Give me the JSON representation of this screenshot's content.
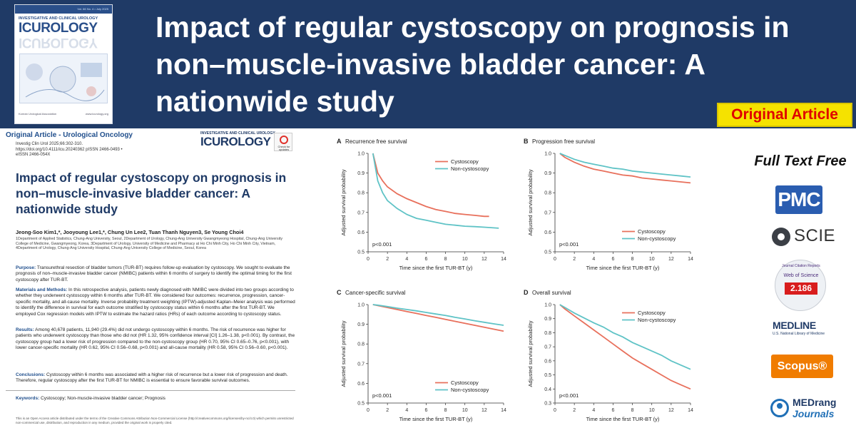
{
  "header": {
    "title": "Impact of regular cystoscopy on prognosis in non–muscle-invasive bladder cancer: A nationwide study",
    "badge": "Original Article"
  },
  "cover": {
    "volume": "Vol. 66 No. 4 • July 2025",
    "journal": "INVESTIGATIVE AND CLINICAL UROLOGY",
    "logo": "ICUROLOGY",
    "publisher": "Korean Urological Association",
    "url": "www.icurology.org"
  },
  "article": {
    "section": "Original Article - Urological Oncology",
    "citation": "Investig Clin Urol 2025;66:302-310. https://doi.org/10.4111/icu.20240362 pISSN 2466-0493 • eISSN 2466-054X",
    "journal_small": "INVESTIGATIVE AND CLINICAL UROLOGY",
    "journal_logo": "ICUROLOGY",
    "check_updates": "Check for updates",
    "title": "Impact of regular cystoscopy on prognosis in non–muscle-invasive bladder cancer: A nationwide study",
    "authors": "Jeong-Soo Kim1,*, Jooyoung Lee1,*, Chung Un Lee2, Tuan Thanh Nguyen3, Se Young Choi4",
    "affiliations": "1Department of Applied Statistics, Chung-Ang University, Seoul, 2Department of Urology, Chung-Ang University Gwangmyeong Hospital, Chung-Ang University College of Medicine, Gwangmyeong, Korea, 3Department of Urology, University of Medicine and Pharmacy at Ho Chi Minh City, Ho Chi Minh City, Vietnam, 4Department of Urology, Chung-Ang University Hospital, Chung-Ang University College of Medicine, Seoul, Korea",
    "purpose_label": "Purpose:",
    "purpose": "Transurethral resection of bladder tumors (TUR-BT) requires follow-up evaluation by cystoscopy. We sought to evaluate the prognosis of non–muscle-invasive bladder cancer (NMIBC) patients within 6 months of surgery to identify the optimal timing for the first cystoscopy after TUR-BT.",
    "methods_label": "Materials and Methods:",
    "methods": "In this retrospective analysis, patients newly diagnosed with NMIBC were divided into two groups according to whether they underwent cystoscopy within 6 months after TUR-BT. We considered four outcomes: recurrence, progression, cancer-specific mortality, and all-cause mortality. Inverse probability treatment weighting (IPTW)-adjusted Kaplan–Meier analysis was performed to identify the difference in survival for each outcome stratified by cystoscopy status within 6 months after the first TUR-BT. We employed Cox regression models with IPTW to estimate the hazard ratios (HRs) of each outcome according to cystoscopy status.",
    "results_label": "Results:",
    "results": "Among 40,678 patients, 11,940 (29.4%) did not undergo cystoscopy within 6 months. The risk of recurrence was higher for patients who underwent cystoscopy than those who did not (HR 1.32, 95% confidence interval [CI] 1.26–1.38, p<0.001). By contrast, the cystoscopy group had a lower risk of progression compared to the non-cystoscopy group (HR 0.70, 95% CI 0.65–0.76, p<0.001), with lower cancer-specific mortality (HR 0.62, 95% CI 0.56–0.68, p<0.001) and all-cause mortality (HR 0.58, 95% CI 0.56–0.60, p<0.001).",
    "conclusions_label": "Conclusions:",
    "conclusions": "Cystoscopy within 6 months was associated with a higher risk of recurrence but a lower risk of progression and death. Therefore, regular cystoscopy after the first TUR-BT for NMIBC is essential to ensure favorable survival outcomes.",
    "keywords_label": "Keywords:",
    "keywords": "Cystoscopy; Non-muscle-invasive bladder cancer; Prognosis",
    "open_access": "This is an Open Access article distributed under the terms of the Creative Commons Attribution Non-Commercial License (http://creativecommons.org/licenses/by-nc/4.0) which permits unrestricted non-commercial use, distribution, and reproduction in any medium, provided the original work is properly cited."
  },
  "colors": {
    "header_bg": "#1f3a66",
    "badge_bg": "#f5e200",
    "badge_text": "#e00000",
    "cystoscopy": "#e8705c",
    "non_cystoscopy": "#5fc3c6"
  },
  "chart_data": [
    {
      "type": "line",
      "panel": "A",
      "title": "Recurrence free survival",
      "xlabel": "Time since the first TUR-BT (y)",
      "ylabel": "Adjusted survival probability",
      "xlim": [
        0,
        14
      ],
      "ylim": [
        0.5,
        1.0
      ],
      "xticks": [
        0,
        2,
        4,
        6,
        8,
        10,
        12,
        14
      ],
      "yticks": [
        0.5,
        0.6,
        0.7,
        0.8,
        0.9,
        1.0
      ],
      "pvalue": "p<0.001",
      "legend": "top-right",
      "series": [
        {
          "name": "Cystoscopy",
          "color": "#e8705c",
          "x": [
            0.5,
            1,
            1.5,
            2,
            3,
            4,
            5,
            6,
            7,
            8,
            9,
            10,
            11,
            12,
            12.5
          ],
          "values": [
            1.0,
            0.9,
            0.86,
            0.83,
            0.795,
            0.77,
            0.75,
            0.73,
            0.715,
            0.705,
            0.695,
            0.69,
            0.685,
            0.68,
            0.68
          ]
        },
        {
          "name": "Non-cystoscopy",
          "color": "#5fc3c6",
          "x": [
            0.5,
            1,
            1.5,
            2,
            3,
            4,
            5,
            6,
            7,
            8,
            9,
            10,
            11,
            12,
            13.5
          ],
          "values": [
            1.0,
            0.86,
            0.8,
            0.76,
            0.72,
            0.69,
            0.67,
            0.66,
            0.65,
            0.64,
            0.635,
            0.63,
            0.628,
            0.625,
            0.62
          ]
        }
      ]
    },
    {
      "type": "line",
      "panel": "B",
      "title": "Progression free survival",
      "xlabel": "Time since the first TUR-BT (y)",
      "ylabel": "Adjusted survival probability",
      "xlim": [
        0,
        14
      ],
      "ylim": [
        0.5,
        1.0
      ],
      "xticks": [
        0,
        2,
        4,
        6,
        8,
        10,
        12,
        14
      ],
      "yticks": [
        0.5,
        0.6,
        0.7,
        0.8,
        0.9,
        1.0
      ],
      "pvalue": "p<0.001",
      "legend": "bottom-right",
      "series": [
        {
          "name": "Cystoscopy",
          "color": "#e8705c",
          "x": [
            0.5,
            1,
            2,
            3,
            4,
            5,
            6,
            7,
            8,
            9,
            10,
            11,
            12,
            13,
            14
          ],
          "values": [
            1.0,
            0.98,
            0.955,
            0.935,
            0.92,
            0.91,
            0.9,
            0.89,
            0.885,
            0.875,
            0.87,
            0.865,
            0.86,
            0.855,
            0.85
          ]
        },
        {
          "name": "Non-cystoscopy",
          "color": "#5fc3c6",
          "x": [
            0.5,
            1,
            2,
            3,
            4,
            5,
            6,
            7,
            8,
            9,
            10,
            11,
            12,
            13,
            14
          ],
          "values": [
            1.0,
            0.99,
            0.97,
            0.955,
            0.945,
            0.935,
            0.925,
            0.92,
            0.91,
            0.905,
            0.9,
            0.895,
            0.89,
            0.885,
            0.88
          ]
        }
      ]
    },
    {
      "type": "line",
      "panel": "C",
      "title": "Cancer-specific survival",
      "xlabel": "Time since the first TUR-BT (y)",
      "ylabel": "Adjusted survival probability",
      "xlim": [
        0,
        14
      ],
      "ylim": [
        0.5,
        1.0
      ],
      "xticks": [
        0,
        2,
        4,
        6,
        8,
        10,
        12,
        14
      ],
      "yticks": [
        0.5,
        0.6,
        0.7,
        0.8,
        0.9,
        1.0
      ],
      "pvalue": "p<0.001",
      "legend": "bottom-right",
      "series": [
        {
          "name": "Cystoscopy",
          "color": "#e8705c",
          "x": [
            0.5,
            1,
            2,
            3,
            4,
            5,
            6,
            7,
            8,
            9,
            10,
            11,
            12,
            13,
            14
          ],
          "values": [
            1.0,
            0.995,
            0.985,
            0.975,
            0.965,
            0.955,
            0.945,
            0.935,
            0.925,
            0.915,
            0.905,
            0.895,
            0.885,
            0.875,
            0.865
          ]
        },
        {
          "name": "Non-cystoscopy",
          "color": "#5fc3c6",
          "x": [
            0.5,
            1,
            2,
            3,
            4,
            5,
            6,
            7,
            8,
            9,
            10,
            11,
            12,
            13,
            14
          ],
          "values": [
            1.0,
            0.997,
            0.99,
            0.982,
            0.975,
            0.968,
            0.96,
            0.952,
            0.945,
            0.935,
            0.927,
            0.918,
            0.91,
            0.902,
            0.895
          ]
        }
      ]
    },
    {
      "type": "line",
      "panel": "D",
      "title": "Overall survival",
      "xlabel": "Time since the first TUR-BT (y)",
      "ylabel": "Adjusted survival probability",
      "xlim": [
        0,
        14
      ],
      "ylim": [
        0.3,
        1.0
      ],
      "xticks": [
        0,
        2,
        4,
        6,
        8,
        10,
        12,
        14
      ],
      "yticks": [
        0.3,
        0.4,
        0.5,
        0.6,
        0.7,
        0.8,
        0.9,
        1.0
      ],
      "pvalue": "p<0.001",
      "legend": "top-right",
      "series": [
        {
          "name": "Cystoscopy",
          "color": "#e8705c",
          "x": [
            0.5,
            1,
            2,
            3,
            4,
            5,
            6,
            7,
            8,
            9,
            10,
            11,
            12,
            13,
            14
          ],
          "values": [
            1.0,
            0.97,
            0.92,
            0.87,
            0.82,
            0.77,
            0.72,
            0.67,
            0.62,
            0.58,
            0.54,
            0.5,
            0.46,
            0.43,
            0.4
          ]
        },
        {
          "name": "Non-cystoscopy",
          "color": "#5fc3c6",
          "x": [
            0.5,
            1,
            2,
            3,
            4,
            5,
            6,
            7,
            8,
            9,
            10,
            11,
            12,
            13,
            14
          ],
          "values": [
            1.0,
            0.98,
            0.94,
            0.905,
            0.87,
            0.84,
            0.8,
            0.77,
            0.73,
            0.7,
            0.67,
            0.64,
            0.6,
            0.57,
            0.54
          ]
        }
      ]
    }
  ],
  "index": {
    "full_text": "Full Text Free",
    "pmc": "PMC",
    "scie": "SCIE",
    "jcr_ring": "Journal Citation Reports",
    "jcr_wos": "Web of Science",
    "impact_factor": "2.186",
    "medline": "MEDLINE",
    "medline_sub": "U.S. National Library of Medicine",
    "scopus": "Scopus®",
    "medrang_1": "MEDrang",
    "medrang_2": "Journals"
  }
}
